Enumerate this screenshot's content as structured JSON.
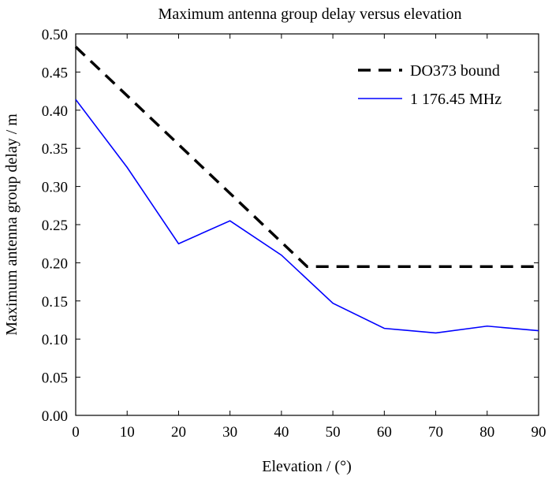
{
  "chart_data": {
    "type": "line",
    "title": "Maximum antenna group delay versus elevation",
    "xlabel": "Elevation / (°)",
    "ylabel": "Maximum antenna group delay / m",
    "xlim": [
      0,
      90
    ],
    "ylim": [
      0,
      0.5
    ],
    "x_ticks": [
      "0",
      "10",
      "20",
      "30",
      "40",
      "50",
      "60",
      "70",
      "80",
      "90"
    ],
    "y_ticks": [
      "0.00",
      "0.05",
      "0.10",
      "0.15",
      "0.20",
      "0.25",
      "0.30",
      "0.35",
      "0.40",
      "0.45",
      "0.50"
    ],
    "grid": false,
    "legend_position": "top-right",
    "series": [
      {
        "name": "DO373 bound",
        "style": "dashed",
        "color": "#000000",
        "x": [
          0,
          45,
          90
        ],
        "y": [
          0.483,
          0.195,
          0.195
        ]
      },
      {
        "name": "1 176.45 MHz",
        "style": "solid",
        "color": "#0000ff",
        "x": [
          0,
          10,
          20,
          30,
          40,
          50,
          60,
          70,
          80,
          90
        ],
        "y": [
          0.414,
          0.325,
          0.225,
          0.255,
          0.21,
          0.147,
          0.114,
          0.108,
          0.117,
          0.111
        ]
      }
    ]
  }
}
